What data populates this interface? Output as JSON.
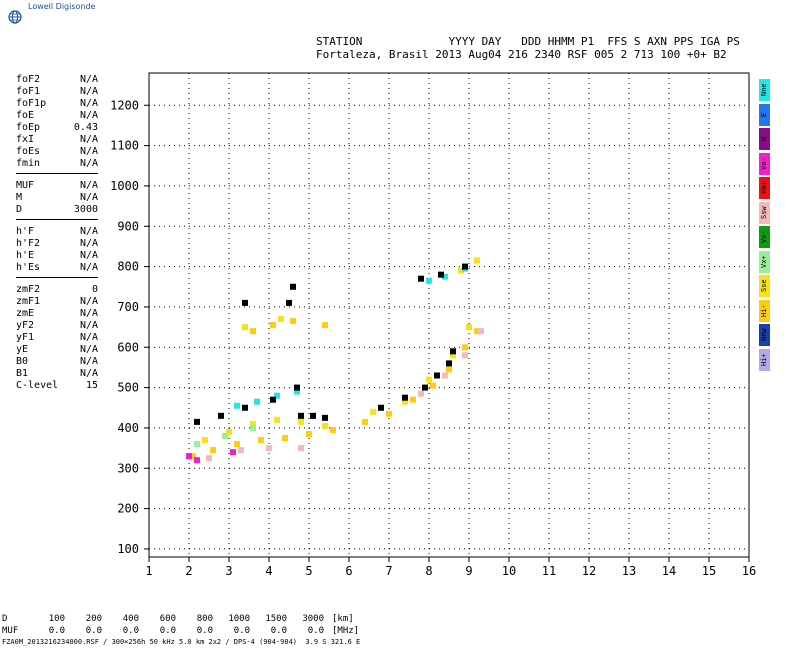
{
  "logo": {
    "text": "Lowell Digisonde",
    "icon": "globe-icon"
  },
  "header": {
    "line1": "STATION             YYYY DAY   DDD HHMM P1  FFS S AXN PPS IGA PS",
    "line2": "Fortaleza, Brasil 2013 Aug04 216 2340 RSF 005 2 713 100 +0+ B2"
  },
  "params": {
    "group1": [
      {
        "label": "foF2",
        "value": "N/A"
      },
      {
        "label": "foF1",
        "value": "N/A"
      },
      {
        "label": "foF1p",
        "value": "N/A"
      },
      {
        "label": "foE",
        "value": "N/A"
      },
      {
        "label": "foEp",
        "value": "0.43"
      },
      {
        "label": "fxI",
        "value": "N/A"
      },
      {
        "label": "foEs",
        "value": "N/A"
      },
      {
        "label": "fmin",
        "value": "N/A"
      }
    ],
    "group2": [
      {
        "label": "MUF",
        "value": "N/A"
      },
      {
        "label": "M",
        "value": "N/A"
      },
      {
        "label": "D",
        "value": "3000"
      }
    ],
    "group3": [
      {
        "label": "h'F",
        "value": "N/A"
      },
      {
        "label": "h'F2",
        "value": "N/A"
      },
      {
        "label": "h'E",
        "value": "N/A"
      },
      {
        "label": "h'Es",
        "value": "N/A"
      }
    ],
    "group4": [
      {
        "label": "zmF2",
        "value": "0"
      },
      {
        "label": "zmF1",
        "value": "N/A"
      },
      {
        "label": "zmE",
        "value": "N/A"
      },
      {
        "label": "yF2",
        "value": "N/A"
      },
      {
        "label": "yF1",
        "value": "N/A"
      },
      {
        "label": "yE",
        "value": "N/A"
      },
      {
        "label": "B0",
        "value": "N/A"
      },
      {
        "label": "B1",
        "value": "N/A"
      },
      {
        "label": "C-level",
        "value": "15"
      }
    ]
  },
  "legend": [
    {
      "label": "Nne",
      "color": "#22e6e6"
    },
    {
      "label": "E",
      "color": "#2277ee"
    },
    {
      "label": "W",
      "color": "#8a0a8a"
    },
    {
      "label": "Vo-",
      "color": "#ee22cc"
    },
    {
      "label": "Vo+",
      "color": "#ee1111"
    },
    {
      "label": "Ssw",
      "color": "#f5b8b8"
    },
    {
      "label": "Vx-",
      "color": "#119911"
    },
    {
      "label": "Vx+",
      "color": "#99ee99"
    },
    {
      "label": "Sse",
      "color": "#f7e21a"
    },
    {
      "label": "Hi-",
      "color": "#ffcc11"
    },
    {
      "label": "Nnw",
      "color": "#1a3fb0"
    },
    {
      "label": "Hi+",
      "color": "#b8a8e8"
    }
  ],
  "distance_table": {
    "d_label": "D",
    "muf_label": "MUF",
    "distances": [
      "100",
      "200",
      "400",
      "600",
      "800",
      "1000",
      "1500",
      "3000"
    ],
    "muf_values": [
      "0.0",
      "0.0",
      "0.0",
      "0.0",
      "0.0",
      "0.0",
      "0.0",
      "0.0"
    ],
    "d_unit": "[km]",
    "muf_unit": "[MHz]"
  },
  "footer": "FZA0M_2013216234000.RSF / 300×256h 50 kHz 5.0 km 2x2 / DPS-4 (904-904)  3.9 S 321.6 E",
  "chart_data": {
    "type": "scatter",
    "title": "",
    "xlabel": "",
    "ylabel": "",
    "xlim": [
      1,
      16
    ],
    "ylim": [
      80,
      1280
    ],
    "x_ticks": [
      1,
      2,
      3,
      4,
      5,
      6,
      7,
      8,
      9,
      10,
      11,
      12,
      13,
      14,
      15,
      16
    ],
    "y_ticks": [
      100,
      200,
      300,
      400,
      500,
      600,
      700,
      800,
      900,
      1000,
      1100,
      1200
    ],
    "grid": true,
    "series": [
      {
        "name": "Hi-",
        "color": "#ffcc11",
        "points": [
          [
            2.1,
            330
          ],
          [
            2.6,
            345
          ],
          [
            3.2,
            360
          ],
          [
            3.8,
            370
          ],
          [
            4.4,
            375
          ],
          [
            5.0,
            385
          ],
          [
            5.6,
            395
          ],
          [
            6.4,
            415
          ],
          [
            7.0,
            435
          ],
          [
            7.6,
            470
          ],
          [
            8.1,
            505
          ],
          [
            8.5,
            545
          ],
          [
            8.9,
            600
          ],
          [
            9.2,
            640
          ],
          [
            3.6,
            640
          ],
          [
            4.1,
            655
          ],
          [
            4.6,
            665
          ],
          [
            5.4,
            655
          ]
        ]
      },
      {
        "name": "Sse",
        "color": "#f7e21a",
        "points": [
          [
            2.4,
            370
          ],
          [
            3.0,
            390
          ],
          [
            3.6,
            410
          ],
          [
            4.2,
            420
          ],
          [
            4.8,
            415
          ],
          [
            5.4,
            405
          ],
          [
            6.6,
            440
          ],
          [
            7.4,
            465
          ],
          [
            8.0,
            520
          ],
          [
            8.6,
            580
          ],
          [
            9.0,
            650
          ],
          [
            3.4,
            650
          ],
          [
            4.3,
            670
          ],
          [
            8.8,
            790
          ],
          [
            9.2,
            815
          ]
        ]
      },
      {
        "name": "Ssw",
        "color": "#f5b8b8",
        "points": [
          [
            2.5,
            325
          ],
          [
            3.3,
            345
          ],
          [
            4.0,
            350
          ],
          [
            4.8,
            350
          ],
          [
            7.8,
            485
          ],
          [
            8.4,
            530
          ],
          [
            8.9,
            580
          ],
          [
            9.3,
            640
          ]
        ]
      },
      {
        "name": "Vo-",
        "color": "#ee22cc",
        "points": [
          [
            2.0,
            330
          ],
          [
            2.2,
            320
          ],
          [
            3.1,
            340
          ]
        ]
      },
      {
        "name": "Nne",
        "color": "#22e6e6",
        "points": [
          [
            3.2,
            455
          ],
          [
            3.7,
            465
          ],
          [
            4.2,
            480
          ],
          [
            4.7,
            490
          ],
          [
            8.0,
            765
          ],
          [
            8.4,
            775
          ],
          [
            8.9,
            795
          ]
        ]
      },
      {
        "name": "Vx+",
        "color": "#99ee99",
        "points": [
          [
            2.2,
            360
          ],
          [
            2.9,
            380
          ],
          [
            3.6,
            400
          ]
        ]
      },
      {
        "name": "No class",
        "color": "#000000",
        "points": [
          [
            2.2,
            415
          ],
          [
            2.8,
            430
          ],
          [
            3.4,
            450
          ],
          [
            4.1,
            470
          ],
          [
            4.7,
            500
          ],
          [
            3.4,
            710
          ],
          [
            4.5,
            710
          ],
          [
            4.6,
            750
          ],
          [
            6.8,
            450
          ],
          [
            7.4,
            475
          ],
          [
            7.9,
            500
          ],
          [
            8.2,
            530
          ],
          [
            8.5,
            560
          ],
          [
            8.6,
            590
          ],
          [
            7.8,
            770
          ],
          [
            8.3,
            780
          ],
          [
            8.9,
            800
          ],
          [
            4.8,
            430
          ],
          [
            5.1,
            430
          ],
          [
            5.4,
            425
          ]
        ]
      }
    ]
  }
}
